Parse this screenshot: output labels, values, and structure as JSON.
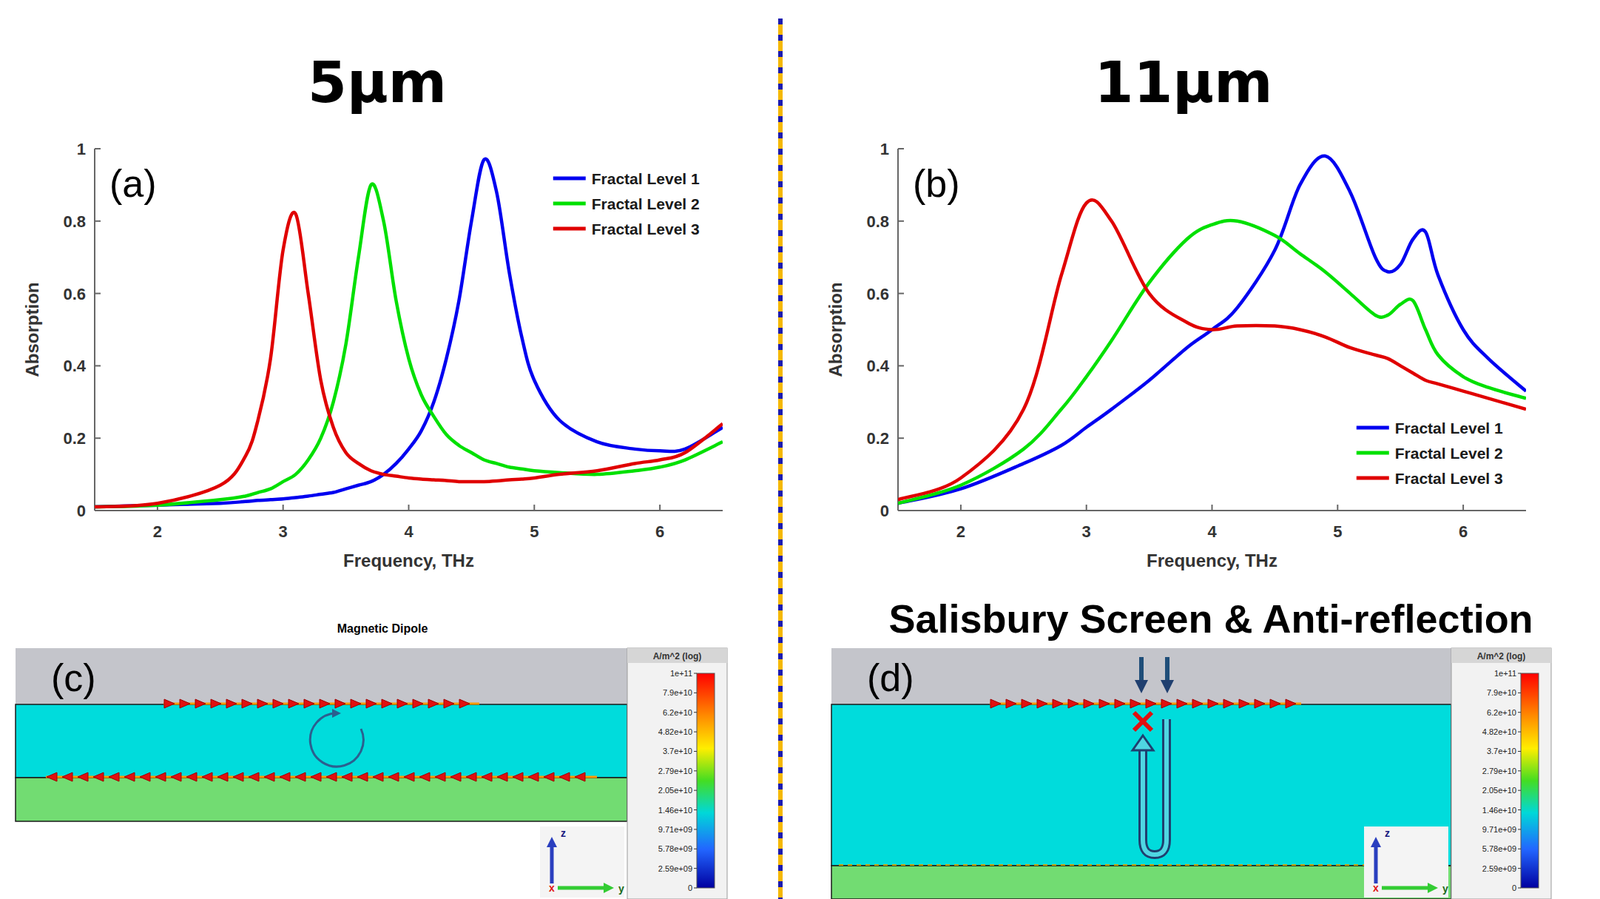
{
  "chart_data": [
    {
      "type": "line",
      "title": "5μm",
      "annotations": [
        "(a)"
      ],
      "x_label": "Frequency, THz",
      "y_label": "Absorption",
      "xlim": [
        1.5,
        6.5
      ],
      "xticks": [
        2,
        3,
        4,
        5,
        6
      ],
      "ylim": [
        0,
        1
      ],
      "yticks": [
        0,
        0.2,
        0.4,
        0.6,
        0.8,
        1
      ],
      "grid": false,
      "legend": "upper right",
      "x": [
        1.5,
        2,
        2.5,
        2.7,
        2.8,
        2.9,
        3,
        3.1,
        3.2,
        3.3,
        3.4,
        3.5,
        3.6,
        3.7,
        3.8,
        3.9,
        4,
        4.1,
        4.2,
        4.3,
        4.4,
        4.5,
        4.6,
        4.7,
        4.8,
        4.9,
        5,
        5.2,
        5.5,
        5.8,
        6,
        6.2,
        6.5
      ],
      "series": [
        {
          "name": "Fractal Level 1",
          "color": "#0000f0",
          "values": [
            0.01,
            0.015,
            0.02,
            0.025,
            0.028,
            0.03,
            0.032,
            0.036,
            0.04,
            0.045,
            0.05,
            0.06,
            0.07,
            0.08,
            0.1,
            0.13,
            0.17,
            0.22,
            0.3,
            0.42,
            0.58,
            0.8,
            0.97,
            0.88,
            0.66,
            0.48,
            0.36,
            0.25,
            0.19,
            0.17,
            0.165,
            0.17,
            0.23
          ]
        },
        {
          "name": "Fractal Level 2",
          "color": "#00e000",
          "values": [
            0.01,
            0.015,
            0.03,
            0.04,
            0.05,
            0.06,
            0.08,
            0.1,
            0.14,
            0.2,
            0.3,
            0.46,
            0.7,
            0.9,
            0.8,
            0.58,
            0.42,
            0.32,
            0.26,
            0.21,
            0.18,
            0.16,
            0.14,
            0.13,
            0.12,
            0.115,
            0.11,
            0.105,
            0.1,
            0.11,
            0.12,
            0.14,
            0.19
          ]
        },
        {
          "name": "Fractal Level 3",
          "color": "#e00000",
          "values": [
            0.01,
            0.02,
            0.07,
            0.15,
            0.25,
            0.42,
            0.72,
            0.82,
            0.6,
            0.36,
            0.23,
            0.16,
            0.13,
            0.11,
            0.1,
            0.095,
            0.09,
            0.087,
            0.085,
            0.083,
            0.08,
            0.08,
            0.08,
            0.082,
            0.085,
            0.087,
            0.09,
            0.1,
            0.11,
            0.13,
            0.14,
            0.16,
            0.24
          ]
        }
      ]
    },
    {
      "type": "line",
      "title": "11μm",
      "annotations": [
        "(b)"
      ],
      "x_label": "Frequency, THz",
      "y_label": "Absorption",
      "xlim": [
        1.5,
        6.5
      ],
      "xticks": [
        2,
        3,
        4,
        5,
        6
      ],
      "ylim": [
        0,
        1
      ],
      "yticks": [
        0,
        0.2,
        0.4,
        0.6,
        0.8,
        1
      ],
      "grid": false,
      "legend": "lower right",
      "x": [
        1.5,
        2,
        2.5,
        2.8,
        3,
        3.2,
        3.5,
        3.8,
        4,
        4.2,
        4.5,
        4.7,
        4.9,
        5.1,
        5.3,
        5.4,
        5.5,
        5.6,
        5.7,
        5.8,
        6,
        6.2,
        6.5
      ],
      "series": [
        {
          "name": "Fractal Level 1",
          "color": "#0000f0",
          "values": [
            0.02,
            0.06,
            0.13,
            0.18,
            0.23,
            0.28,
            0.36,
            0.45,
            0.5,
            0.56,
            0.72,
            0.9,
            0.98,
            0.88,
            0.7,
            0.66,
            0.68,
            0.75,
            0.77,
            0.65,
            0.5,
            0.42,
            0.33
          ]
        },
        {
          "name": "Fractal Level 2",
          "color": "#00e000",
          "values": [
            0.02,
            0.07,
            0.17,
            0.28,
            0.37,
            0.47,
            0.63,
            0.75,
            0.79,
            0.8,
            0.76,
            0.71,
            0.66,
            0.6,
            0.54,
            0.54,
            0.57,
            0.58,
            0.5,
            0.43,
            0.37,
            0.34,
            0.31
          ]
        },
        {
          "name": "Fractal Level 3",
          "color": "#e00000",
          "values": [
            0.03,
            0.09,
            0.28,
            0.65,
            0.85,
            0.8,
            0.6,
            0.52,
            0.5,
            0.51,
            0.51,
            0.5,
            0.48,
            0.45,
            0.43,
            0.42,
            0.4,
            0.38,
            0.36,
            0.35,
            0.33,
            0.31,
            0.28
          ]
        }
      ]
    }
  ],
  "diagrams": [
    {
      "letter": "(c)",
      "title": "Magnetic Dipole",
      "colorbar": {
        "title": "A/m^2 (log)",
        "labels": [
          "1e+11",
          "7.9e+10",
          "6.2e+10",
          "4.82e+10",
          "3.7e+10",
          "2.79e+10",
          "2.05e+10",
          "1.46e+10",
          "9.71e+09",
          "5.78e+09",
          "2.59e+09",
          "0"
        ]
      },
      "axes": [
        "z",
        "y",
        "x"
      ]
    },
    {
      "letter": "(d)",
      "title": "Salisbury Screen & Anti-reflection",
      "colorbar": {
        "title": "A/m^2 (log)",
        "labels": [
          "1e+11",
          "7.9e+10",
          "6.2e+10",
          "4.82e+10",
          "3.7e+10",
          "2.79e+10",
          "2.05e+10",
          "1.46e+10",
          "9.71e+09",
          "5.78e+09",
          "2.59e+09",
          "0"
        ]
      },
      "axes": [
        "z",
        "y",
        "x"
      ]
    }
  ]
}
